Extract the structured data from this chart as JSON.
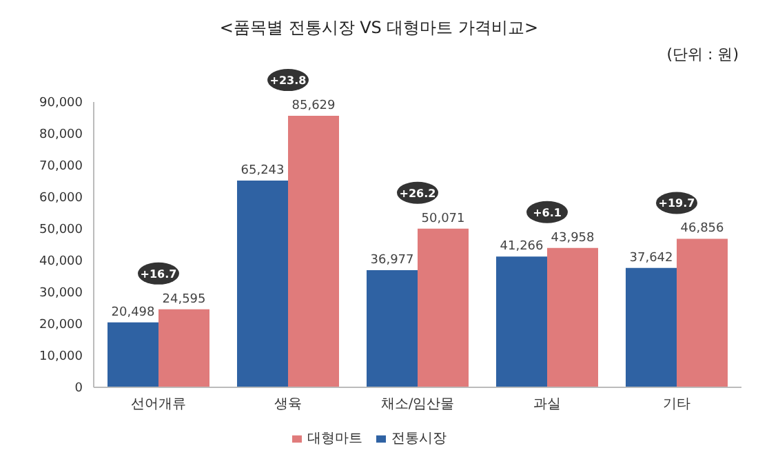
{
  "chart_data": {
    "type": "bar",
    "title": "<품목별 전통시장 VS 대형마트 가격비교>",
    "subtitle": "(단위 : 원)",
    "categories": [
      "선어개류",
      "생육",
      "채소/임산물",
      "과실",
      "기타"
    ],
    "series": [
      {
        "name": "전통시장",
        "color": "#2f62a3",
        "values": [
          20498,
          65243,
          36977,
          41266,
          37642
        ],
        "value_labels": [
          "20,498",
          "65,243",
          "36,977",
          "41,266",
          "37,642"
        ]
      },
      {
        "name": "대형마트",
        "color": "#e07b7b",
        "values": [
          24595,
          85629,
          50071,
          43958,
          46856
        ],
        "value_labels": [
          "24,595",
          "85,629",
          "50,071",
          "43,958",
          "46,856"
        ]
      }
    ],
    "ylim": [
      0,
      90000
    ],
    "yticks": [
      {
        "value": 0,
        "label": "0"
      },
      {
        "value": 10000,
        "label": "10,000"
      },
      {
        "value": 20000,
        "label": "20,000"
      },
      {
        "value": 30000,
        "label": "30,000"
      },
      {
        "value": 40000,
        "label": "40,000"
      },
      {
        "value": 50000,
        "label": "50,000"
      },
      {
        "value": 60000,
        "label": "60,000"
      },
      {
        "value": 70000,
        "label": "70,000"
      },
      {
        "value": 80000,
        "label": "80,000"
      },
      {
        "value": 90000,
        "label": "90,000"
      }
    ],
    "annotations": [
      {
        "text": "+16.7",
        "x": "선어개류",
        "y": 24595
      },
      {
        "text": "+23.8",
        "x": "생육",
        "y": 85629
      },
      {
        "text": "+26.2",
        "x": "채소/임산물",
        "y": 50071
      },
      {
        "text": "+6.1",
        "x": "과실",
        "y": 43958
      },
      {
        "text": "+19.7",
        "x": "기타",
        "y": 46856
      }
    ],
    "grid": false,
    "legend": "bottom"
  }
}
